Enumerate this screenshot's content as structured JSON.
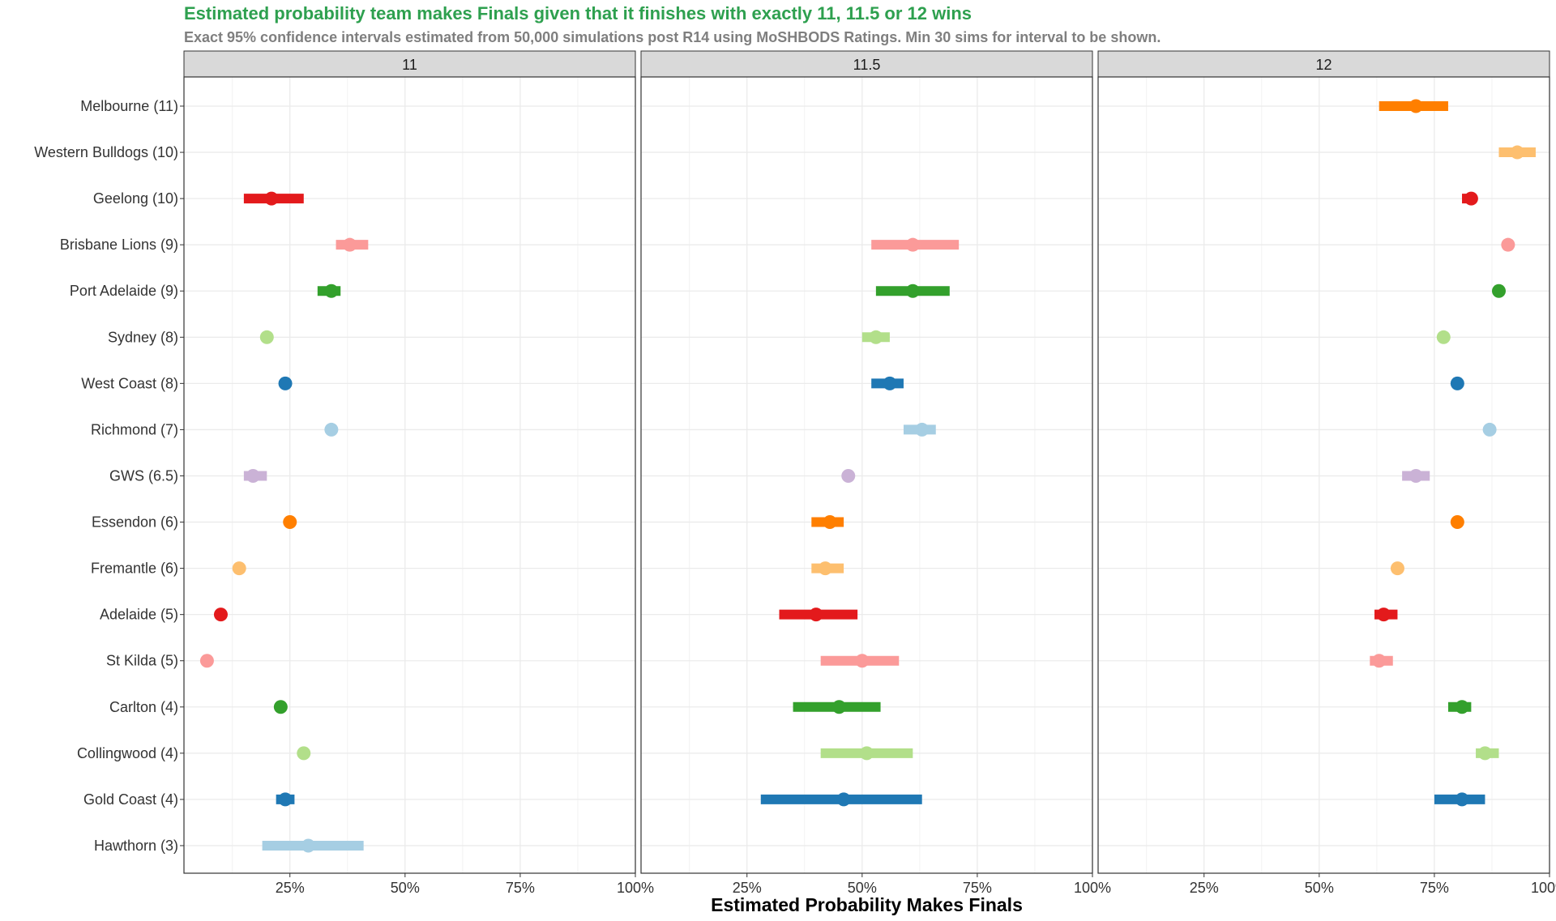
{
  "title": "Estimated probability team makes Finals given that it finishes with exactly 11, 11.5 or 12 wins",
  "subtitle": "Exact 95% confidence intervals estimated from 50,000 simulations post R14 using MoSHBODS Ratings. Min 30 sims for interval to be shown.",
  "chart_data": {
    "type": "scatter",
    "title": "Estimated probability team makes Finals given that it finishes with exactly 11, 11.5 or 12 wins",
    "subtitle": "Exact 95% confidence intervals estimated from 50,000 simulations post R14 using MoSHBODS Ratings. Min 30 sims for interval to be shown.",
    "xlabel": "Estimated Probability Makes Finals",
    "ylabel": "",
    "xlim": [
      0.02,
      1.0
    ],
    "x_ticks": [
      0.25,
      0.5,
      0.75,
      1.0
    ],
    "x_tick_labels": [
      "25%",
      "50%",
      "75%",
      "100%"
    ],
    "grid": true,
    "legend": "none",
    "panels": [
      "11",
      "11.5",
      "12"
    ],
    "teams": [
      "Melbourne (11)",
      "Western Bulldogs (10)",
      "Geelong (10)",
      "Brisbane Lions (9)",
      "Port Adelaide (9)",
      "Sydney (8)",
      "West Coast (8)",
      "Richmond (7)",
      "GWS (6.5)",
      "Essendon (6)",
      "Fremantle (6)",
      "Adelaide (5)",
      "St Kilda (5)",
      "Carlton (4)",
      "Collingwood (4)",
      "Gold Coast (4)",
      "Hawthorn (3)"
    ],
    "team_colors": [
      "#ff7f00",
      "#fdbf6f",
      "#e31a1c",
      "#fb9a99",
      "#33a02c",
      "#b2df8a",
      "#1f78b4",
      "#a6cee3",
      "#cab2d6",
      "#ff7f00",
      "#fdbf6f",
      "#e31a1c",
      "#fb9a99",
      "#33a02c",
      "#b2df8a",
      "#1f78b4",
      "#a6cee3"
    ],
    "series": [
      {
        "name": "11",
        "points": [
          null,
          null,
          {
            "est": 0.21,
            "lo": 0.15,
            "hi": 0.28
          },
          {
            "est": 0.38,
            "lo": 0.35,
            "hi": 0.42
          },
          {
            "est": 0.34,
            "lo": 0.31,
            "hi": 0.36
          },
          {
            "est": 0.2
          },
          {
            "est": 0.24
          },
          {
            "est": 0.34
          },
          {
            "est": 0.17,
            "lo": 0.15,
            "hi": 0.2
          },
          {
            "est": 0.25
          },
          {
            "est": 0.14
          },
          {
            "est": 0.1
          },
          {
            "est": 0.07
          },
          {
            "est": 0.23
          },
          {
            "est": 0.28,
            "lo": 0.27,
            "hi": 0.29
          },
          {
            "est": 0.24,
            "lo": 0.22,
            "hi": 0.26
          },
          {
            "est": 0.29,
            "lo": 0.19,
            "hi": 0.41
          }
        ]
      },
      {
        "name": "11.5",
        "points": [
          null,
          null,
          null,
          {
            "est": 0.61,
            "lo": 0.52,
            "hi": 0.71
          },
          {
            "est": 0.61,
            "lo": 0.53,
            "hi": 0.69
          },
          {
            "est": 0.53,
            "lo": 0.5,
            "hi": 0.56
          },
          {
            "est": 0.56,
            "lo": 0.52,
            "hi": 0.59
          },
          {
            "est": 0.63,
            "lo": 0.59,
            "hi": 0.66
          },
          {
            "est": 0.47
          },
          {
            "est": 0.43,
            "lo": 0.39,
            "hi": 0.46
          },
          {
            "est": 0.42,
            "lo": 0.39,
            "hi": 0.46
          },
          {
            "est": 0.4,
            "lo": 0.32,
            "hi": 0.49
          },
          {
            "est": 0.5,
            "lo": 0.41,
            "hi": 0.58
          },
          {
            "est": 0.45,
            "lo": 0.35,
            "hi": 0.54
          },
          {
            "est": 0.51,
            "lo": 0.41,
            "hi": 0.61
          },
          {
            "est": 0.46,
            "lo": 0.28,
            "hi": 0.63
          },
          null
        ]
      },
      {
        "name": "12",
        "points": [
          {
            "est": 0.71,
            "lo": 0.63,
            "hi": 0.78
          },
          {
            "est": 0.93,
            "lo": 0.89,
            "hi": 0.97
          },
          {
            "est": 0.83,
            "lo": 0.81,
            "hi": 0.84
          },
          {
            "est": 0.91
          },
          {
            "est": 0.89
          },
          {
            "est": 0.77
          },
          {
            "est": 0.8
          },
          {
            "est": 0.87
          },
          {
            "est": 0.71,
            "lo": 0.68,
            "hi": 0.74
          },
          {
            "est": 0.8
          },
          {
            "est": 0.67
          },
          {
            "est": 0.64,
            "lo": 0.62,
            "hi": 0.67
          },
          {
            "est": 0.63,
            "lo": 0.61,
            "hi": 0.66
          },
          {
            "est": 0.81,
            "lo": 0.78,
            "hi": 0.83
          },
          {
            "est": 0.86,
            "lo": 0.84,
            "hi": 0.89
          },
          {
            "est": 0.81,
            "lo": 0.75,
            "hi": 0.86
          },
          null
        ]
      }
    ]
  }
}
